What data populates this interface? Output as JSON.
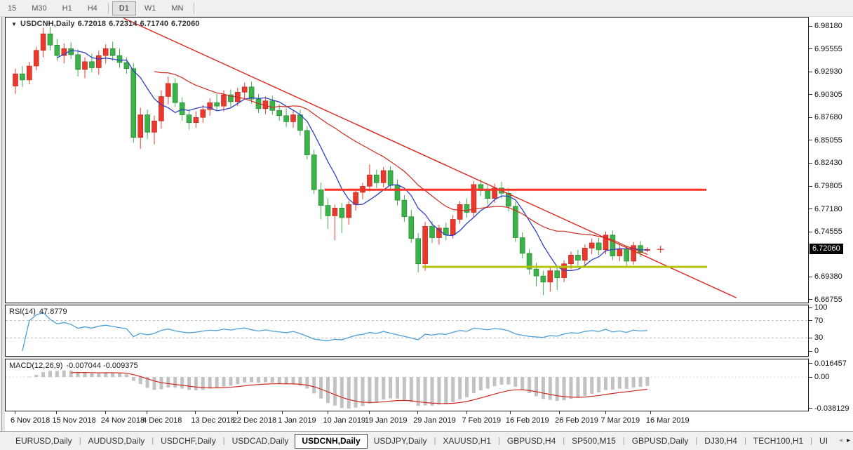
{
  "window": {
    "symbol_period": "USDCNH,Daily",
    "dropdown_icon": "▼",
    "ohlc": {
      "open": "6.72018",
      "high": "6.72314",
      "low": "6.71740",
      "close": "6.72060"
    }
  },
  "toolbar": {
    "groups": [
      [
        {
          "label": "15",
          "active": false
        },
        {
          "label": "M30",
          "active": false
        },
        {
          "label": "H1",
          "active": false
        },
        {
          "label": "H4",
          "active": false
        }
      ],
      [
        {
          "label": "D1",
          "active": true
        },
        {
          "label": "W1",
          "active": false
        },
        {
          "label": "MN",
          "active": false
        }
      ]
    ]
  },
  "tabs": {
    "items": [
      {
        "label": "EURUSD,Daily",
        "active": false
      },
      {
        "label": "AUDUSD,Daily",
        "active": false
      },
      {
        "label": "USDCHF,Daily",
        "active": false
      },
      {
        "label": "USDCAD,Daily",
        "active": false
      },
      {
        "label": "USDCNH,Daily",
        "active": true
      },
      {
        "label": "USDJPY,Daily",
        "active": false
      },
      {
        "label": "XAUUSD,H1",
        "active": false
      },
      {
        "label": "GBPUSD,H4",
        "active": false
      },
      {
        "label": "SP500,M15",
        "active": false
      },
      {
        "label": "GBPUSD,Daily",
        "active": false
      },
      {
        "label": "DJ30,H4",
        "active": false
      },
      {
        "label": "TECH100,H1",
        "active": false
      },
      {
        "label": "UI",
        "active": false
      }
    ],
    "scroll_left": "◂",
    "scroll_right": "▸"
  },
  "chart_data": {
    "type": "candlestick",
    "symbol": "USDCNH",
    "timeframe": "Daily",
    "candle_up_color": "#e8392c",
    "candle_down_color": "#3cb24a",
    "candles": [
      [
        6.908,
        6.928,
        6.899,
        6.922
      ],
      [
        6.922,
        6.931,
        6.907,
        6.915
      ],
      [
        6.915,
        6.936,
        6.91,
        6.931
      ],
      [
        6.931,
        6.953,
        6.926,
        6.949
      ],
      [
        6.949,
        6.975,
        6.941,
        6.968
      ],
      [
        6.968,
        6.976,
        6.949,
        6.955
      ],
      [
        6.955,
        6.962,
        6.937,
        6.943
      ],
      [
        6.943,
        6.957,
        6.934,
        6.951
      ],
      [
        6.951,
        6.958,
        6.939,
        6.944
      ],
      [
        6.944,
        6.95,
        6.919,
        6.927
      ],
      [
        6.927,
        6.941,
        6.917,
        6.936
      ],
      [
        6.936,
        6.945,
        6.924,
        6.929
      ],
      [
        6.929,
        6.949,
        6.921,
        6.943
      ],
      [
        6.943,
        6.956,
        6.934,
        6.951
      ],
      [
        6.951,
        6.959,
        6.937,
        6.943
      ],
      [
        6.943,
        6.951,
        6.929,
        6.935
      ],
      [
        6.935,
        6.941,
        6.922,
        6.928
      ],
      [
        6.928,
        6.934,
        6.843,
        6.849
      ],
      [
        6.849,
        6.883,
        6.836,
        6.875
      ],
      [
        6.875,
        6.881,
        6.847,
        6.855
      ],
      [
        6.855,
        6.874,
        6.841,
        6.868
      ],
      [
        6.868,
        6.903,
        6.859,
        6.896
      ],
      [
        6.896,
        6.919,
        6.887,
        6.911
      ],
      [
        6.911,
        6.917,
        6.884,
        6.889
      ],
      [
        6.889,
        6.895,
        6.868,
        6.875
      ],
      [
        6.875,
        6.881,
        6.858,
        6.866
      ],
      [
        6.866,
        6.879,
        6.86,
        6.872
      ],
      [
        6.872,
        6.886,
        6.866,
        6.881
      ],
      [
        6.881,
        6.894,
        6.874,
        6.889
      ],
      [
        6.889,
        6.899,
        6.88,
        6.885
      ],
      [
        6.885,
        6.903,
        6.879,
        6.898
      ],
      [
        6.898,
        6.904,
        6.884,
        6.89
      ],
      [
        6.89,
        6.906,
        6.885,
        6.901
      ],
      [
        6.901,
        6.912,
        6.894,
        6.907
      ],
      [
        6.907,
        6.913,
        6.888,
        6.893
      ],
      [
        6.893,
        6.899,
        6.877,
        6.882
      ],
      [
        6.882,
        6.896,
        6.876,
        6.891
      ],
      [
        6.891,
        6.897,
        6.875,
        6.88
      ],
      [
        6.88,
        6.887,
        6.868,
        6.874
      ],
      [
        6.874,
        6.883,
        6.861,
        6.867
      ],
      [
        6.867,
        6.88,
        6.86,
        6.875
      ],
      [
        6.875,
        6.881,
        6.851,
        6.857
      ],
      [
        6.857,
        6.862,
        6.824,
        6.829
      ],
      [
        6.829,
        6.835,
        6.784,
        6.789
      ],
      [
        6.789,
        6.797,
        6.755,
        6.771
      ],
      [
        6.771,
        6.779,
        6.744,
        6.759
      ],
      [
        6.759,
        6.772,
        6.731,
        6.768
      ],
      [
        6.768,
        6.774,
        6.739,
        6.757
      ],
      [
        6.757,
        6.776,
        6.749,
        6.772
      ],
      [
        6.772,
        6.79,
        6.765,
        6.786
      ],
      [
        6.786,
        6.797,
        6.778,
        6.793
      ],
      [
        6.793,
        6.818,
        6.787,
        6.806
      ],
      [
        6.806,
        6.812,
        6.791,
        6.797
      ],
      [
        6.797,
        6.815,
        6.792,
        6.811
      ],
      [
        6.811,
        6.816,
        6.789,
        6.794
      ],
      [
        6.794,
        6.801,
        6.771,
        6.777
      ],
      [
        6.777,
        6.783,
        6.752,
        6.758
      ],
      [
        6.758,
        6.766,
        6.728,
        6.733
      ],
      [
        6.733,
        6.739,
        6.694,
        6.704
      ],
      [
        6.704,
        6.752,
        6.696,
        6.747
      ],
      [
        6.747,
        6.753,
        6.728,
        6.734
      ],
      [
        6.734,
        6.749,
        6.726,
        6.745
      ],
      [
        6.745,
        6.751,
        6.731,
        6.737
      ],
      [
        6.737,
        6.76,
        6.733,
        6.755
      ],
      [
        6.755,
        6.776,
        6.75,
        6.772
      ],
      [
        6.772,
        6.779,
        6.757,
        6.763
      ],
      [
        6.763,
        6.799,
        6.758,
        6.795
      ],
      [
        6.795,
        6.801,
        6.782,
        6.788
      ],
      [
        6.788,
        6.794,
        6.772,
        6.779
      ],
      [
        6.779,
        6.796,
        6.774,
        6.791
      ],
      [
        6.791,
        6.798,
        6.779,
        6.785
      ],
      [
        6.785,
        6.791,
        6.764,
        6.77
      ],
      [
        6.77,
        6.775,
        6.729,
        6.734
      ],
      [
        6.734,
        6.74,
        6.71,
        6.716
      ],
      [
        6.716,
        6.721,
        6.692,
        6.698
      ],
      [
        6.698,
        6.705,
        6.678,
        6.69
      ],
      [
        6.69,
        6.696,
        6.668,
        6.683
      ],
      [
        6.683,
        6.7,
        6.672,
        6.696
      ],
      [
        6.696,
        6.701,
        6.674,
        6.688
      ],
      [
        6.688,
        6.708,
        6.683,
        6.704
      ],
      [
        6.704,
        6.718,
        6.698,
        6.714
      ],
      [
        6.714,
        6.72,
        6.702,
        6.708
      ],
      [
        6.708,
        6.726,
        6.703,
        6.722
      ],
      [
        6.722,
        6.733,
        6.715,
        6.728
      ],
      [
        6.728,
        6.734,
        6.714,
        6.72
      ],
      [
        6.72,
        6.741,
        6.715,
        6.737
      ],
      [
        6.737,
        6.742,
        6.708,
        6.713
      ],
      [
        6.713,
        6.726,
        6.707,
        6.721
      ],
      [
        6.721,
        6.725,
        6.701,
        6.707
      ],
      [
        6.707,
        6.729,
        6.703,
        6.725
      ],
      [
        6.725,
        6.73,
        6.712,
        6.717
      ],
      [
        6.72018,
        6.72314,
        6.7174,
        6.7206
      ]
    ],
    "x_ticks": [
      {
        "label": "6 Nov 2018",
        "i": 0
      },
      {
        "label": "15 Nov 2018",
        "i": 6
      },
      {
        "label": "24 Nov 2018",
        "i": 13
      },
      {
        "label": "4 Dec 2018",
        "i": 19
      },
      {
        "label": "13 Dec 2018",
        "i": 26
      },
      {
        "label": "22 Dec 2018",
        "i": 32
      },
      {
        "label": "1 Jan 2019",
        "i": 38.5
      },
      {
        "label": "10 Jan 2019",
        "i": 45
      },
      {
        "label": "19 Jan 2019",
        "i": 51
      },
      {
        "label": "29 Jan 2019",
        "i": 58
      },
      {
        "label": "7 Feb 2019",
        "i": 65
      },
      {
        "label": "16 Feb 2019",
        "i": 71.3
      },
      {
        "label": "26 Feb 2019",
        "i": 78.4
      },
      {
        "label": "7 Mar 2019",
        "i": 85
      },
      {
        "label": "16 Mar 2019",
        "i": 91.5
      }
    ],
    "y_axis": {
      "ticks": [
        "6.98180",
        "6.95555",
        "6.92930",
        "6.90305",
        "6.87680",
        "6.85055",
        "6.82430",
        "6.79805",
        "6.77180",
        "6.74555",
        "6.69380",
        "6.66755"
      ],
      "current_price": "6.72060"
    },
    "overlays": {
      "trendline": {
        "i1": 15.6,
        "p1": 6.9858,
        "i2": 103.8,
        "p2": 6.665,
        "color": "#dd241c"
      },
      "resistance": {
        "price": 6.789,
        "i1": 44.5,
        "i2": 99.5,
        "color": "#f8332a"
      },
      "support": {
        "price": 6.7005,
        "i1": 58.6,
        "i2": 99.6,
        "color": "#b5c307"
      },
      "ma_fast": {
        "period": 7,
        "color": "#3040c4"
      },
      "ma_slow": {
        "period": 21,
        "color": "#d02a20"
      },
      "price_cross_color": "#e8392c"
    },
    "rsi": {
      "name": "RSI(14)",
      "value": "47.8779",
      "levels": [
        70,
        30
      ],
      "axis_ticks": [
        {
          "text": "100",
          "v": 100
        },
        {
          "text": "70",
          "v": 70
        },
        {
          "text": "30",
          "v": 30
        },
        {
          "text": "0",
          "v": 0
        }
      ],
      "color": "#4d9fd6",
      "level_color": "#bbbbbb"
    },
    "macd": {
      "name": "MACD(12,26,9)",
      "values": [
        "-0.007044",
        "-0.009375"
      ],
      "axis_ticks": [
        {
          "text": "0.016457",
          "v": 0.016457
        },
        {
          "text": "0.00",
          "v": 0
        },
        {
          "text": "-0.038129",
          "v": -0.038129
        }
      ],
      "histogram_color": "#c2c2c2",
      "signal_color": "#d02a20",
      "zero_line_color": "#d8d8d8"
    }
  }
}
